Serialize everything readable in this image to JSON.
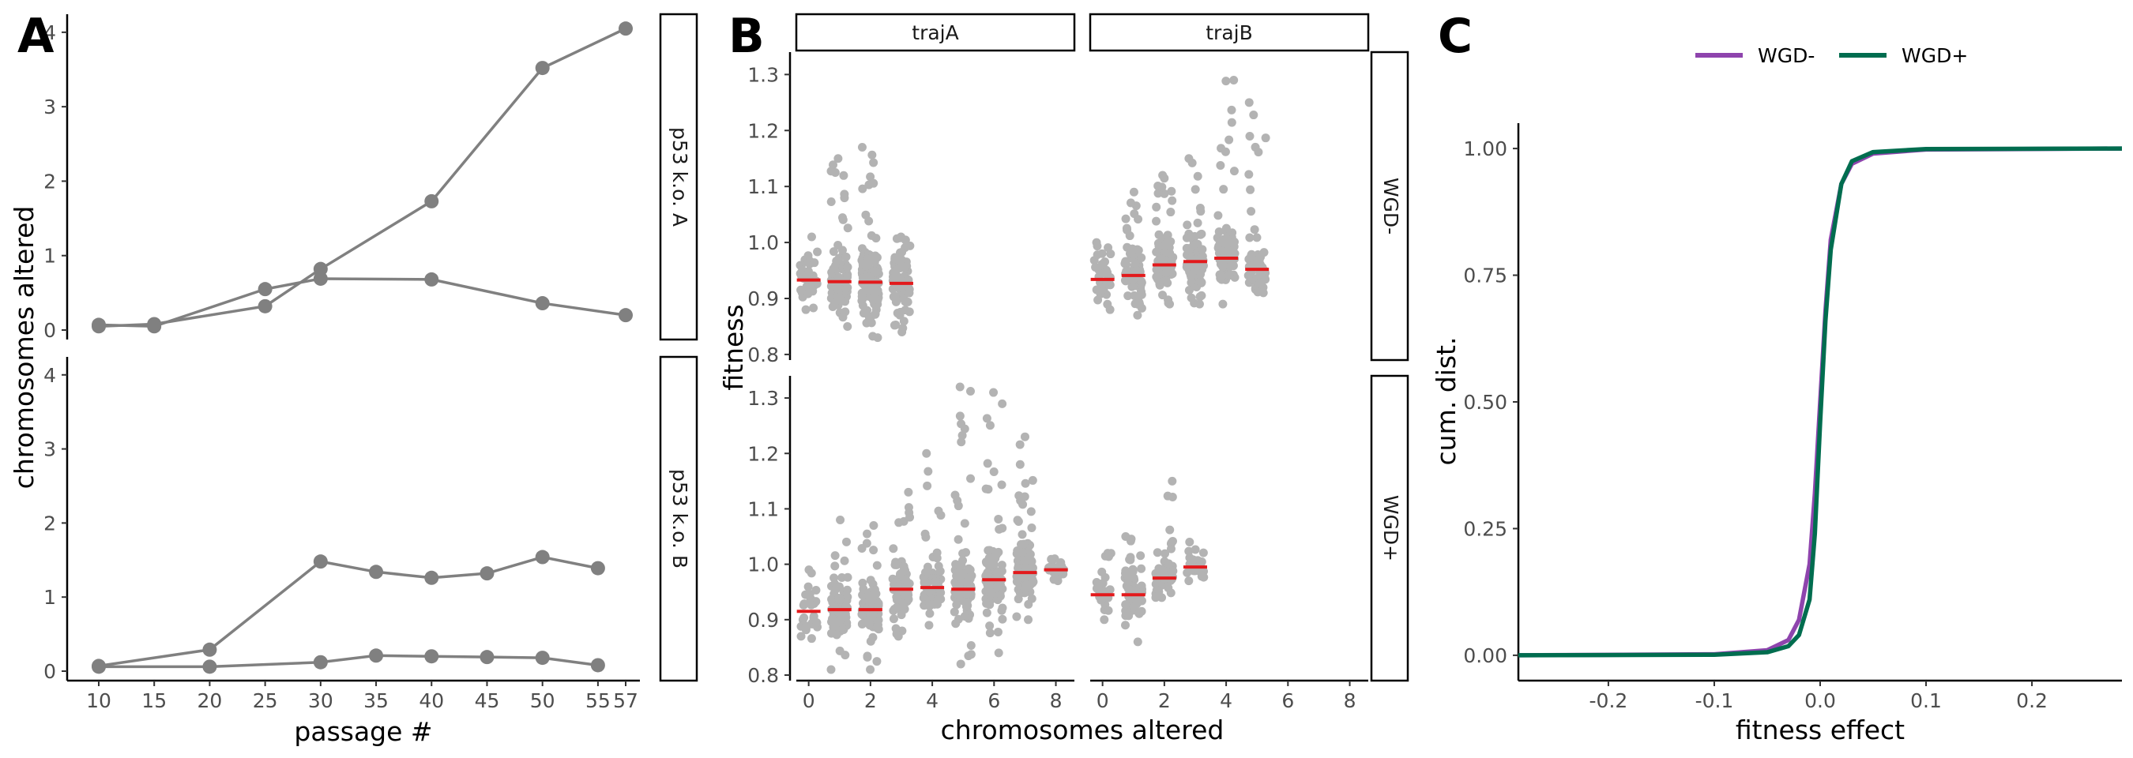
{
  "panel_labels": [
    "A",
    "B",
    "C"
  ],
  "colors": {
    "line_a": "#808080",
    "point_b": "#b3b3b3",
    "mean_bar": "#e31a1c",
    "wgd_minus": "#8e44ad",
    "wgd_plus": "#006d4f"
  },
  "chart_data": [
    {
      "panel": "A",
      "type": "line",
      "xlabel": "passage #",
      "ylabel": "chromosomes altered",
      "x_ticks": [
        "10",
        "15",
        "20",
        "25",
        "30",
        "35",
        "40",
        "45",
        "50",
        "55",
        "57"
      ],
      "x_tick_values": [
        10,
        15,
        20,
        25,
        30,
        35,
        40,
        45,
        50,
        55,
        57.5
      ],
      "ylim": [
        0,
        4.2
      ],
      "y_ticks": [
        "0",
        "1",
        "2",
        "3",
        "4"
      ],
      "facets": [
        {
          "label": "p53 k.o. A",
          "series": [
            {
              "x": [
                10,
                15,
                25,
                30,
                40,
                50,
                57.5
              ],
              "y": [
                0.05,
                0.08,
                0.32,
                0.82,
                1.73,
                3.52,
                4.05
              ]
            },
            {
              "x": [
                10,
                15,
                25,
                30,
                40,
                50,
                57.5
              ],
              "y": [
                0.07,
                0.05,
                0.55,
                0.69,
                0.68,
                0.36,
                0.2
              ]
            }
          ]
        },
        {
          "label": "p53 k.o. B",
          "series": [
            {
              "x": [
                10,
                20,
                30,
                35,
                40,
                45,
                50,
                55
              ],
              "y": [
                0.07,
                0.29,
                1.48,
                1.34,
                1.26,
                1.32,
                1.54,
                1.39
              ]
            },
            {
              "x": [
                10,
                20,
                30,
                35,
                40,
                45,
                50,
                55
              ],
              "y": [
                0.06,
                0.06,
                0.12,
                0.21,
                0.2,
                0.19,
                0.18,
                0.08
              ]
            }
          ]
        }
      ]
    },
    {
      "panel": "B",
      "type": "scatter",
      "xlabel": "chromosomes altered",
      "ylabel": "fitness",
      "xlim": [
        -0.4,
        8.6
      ],
      "x_ticks": [
        0,
        2,
        4,
        6,
        8
      ],
      "ylim": [
        0.79,
        1.34
      ],
      "y_ticks": [
        "0.8",
        "0.9",
        "1.0",
        "1.1",
        "1.2",
        "1.3"
      ],
      "y_tick_values": [
        0.8,
        0.9,
        1.0,
        1.1,
        1.2,
        1.3
      ],
      "col_strips": [
        "trajA",
        "trajB"
      ],
      "row_strips": [
        "WGD-",
        "WGD+"
      ],
      "facets": [
        {
          "col": 0,
          "row": 0,
          "groups": [
            {
              "x": 0,
              "mean": 0.933,
              "min": 0.88,
              "max": 1.01,
              "n": 40
            },
            {
              "x": 1,
              "mean": 0.93,
              "min": 0.85,
              "max": 1.15,
              "n": 90
            },
            {
              "x": 2,
              "mean": 0.929,
              "min": 0.83,
              "max": 1.17,
              "n": 110
            },
            {
              "x": 3,
              "mean": 0.927,
              "min": 0.84,
              "max": 1.01,
              "n": 80
            }
          ]
        },
        {
          "col": 1,
          "row": 0,
          "groups": [
            {
              "x": 0,
              "mean": 0.934,
              "min": 0.88,
              "max": 1.0,
              "n": 40
            },
            {
              "x": 1,
              "mean": 0.941,
              "min": 0.87,
              "max": 1.09,
              "n": 70
            },
            {
              "x": 2,
              "mean": 0.96,
              "min": 0.89,
              "max": 1.12,
              "n": 90
            },
            {
              "x": 3,
              "mean": 0.966,
              "min": 0.89,
              "max": 1.15,
              "n": 90
            },
            {
              "x": 4,
              "mean": 0.972,
              "min": 0.89,
              "max": 1.29,
              "n": 70
            },
            {
              "x": 5,
              "mean": 0.952,
              "min": 0.91,
              "max": 1.25,
              "n": 60
            }
          ]
        },
        {
          "col": 0,
          "row": 1,
          "groups": [
            {
              "x": 0,
              "mean": 0.915,
              "min": 0.87,
              "max": 0.99,
              "n": 30
            },
            {
              "x": 1,
              "mean": 0.918,
              "min": 0.81,
              "max": 1.08,
              "n": 80
            },
            {
              "x": 2,
              "mean": 0.918,
              "min": 0.81,
              "max": 1.07,
              "n": 90
            },
            {
              "x": 3,
              "mean": 0.955,
              "min": 0.87,
              "max": 1.13,
              "n": 80
            },
            {
              "x": 4,
              "mean": 0.958,
              "min": 0.89,
              "max": 1.2,
              "n": 60
            },
            {
              "x": 5,
              "mean": 0.955,
              "min": 0.82,
              "max": 1.32,
              "n": 110
            },
            {
              "x": 6,
              "mean": 0.972,
              "min": 0.84,
              "max": 1.31,
              "n": 110
            },
            {
              "x": 7,
              "mean": 0.985,
              "min": 0.9,
              "max": 1.23,
              "n": 90
            },
            {
              "x": 8,
              "mean": 0.99,
              "min": 0.97,
              "max": 1.01,
              "n": 25
            }
          ]
        },
        {
          "col": 1,
          "row": 1,
          "groups": [
            {
              "x": 0,
              "mean": 0.945,
              "min": 0.9,
              "max": 1.02,
              "n": 25
            },
            {
              "x": 1,
              "mean": 0.945,
              "min": 0.86,
              "max": 1.05,
              "n": 70
            },
            {
              "x": 2,
              "mean": 0.975,
              "min": 0.94,
              "max": 1.15,
              "n": 50
            },
            {
              "x": 3,
              "mean": 0.995,
              "min": 0.97,
              "max": 1.04,
              "n": 25
            }
          ]
        }
      ]
    },
    {
      "panel": "C",
      "type": "line",
      "xlabel": "fitness effect",
      "ylabel": "cum. dist.",
      "xlim": [
        -0.285,
        0.285
      ],
      "x_ticks": [
        "-0.2",
        "-0.1",
        "0.0",
        "0.1",
        "0.2"
      ],
      "x_tick_values": [
        -0.2,
        -0.1,
        0.0,
        0.1,
        0.2
      ],
      "ylim": [
        -0.05,
        1.05
      ],
      "y_ticks": [
        "0.00",
        "0.25",
        "0.50",
        "0.75",
        "1.00"
      ],
      "y_tick_values": [
        0,
        0.25,
        0.5,
        0.75,
        1.0
      ],
      "legend": {
        "position": "top",
        "entries": [
          "WGD-",
          "WGD+"
        ]
      },
      "series": [
        {
          "name": "WGD-",
          "x": [
            -0.285,
            -0.1,
            -0.05,
            -0.03,
            -0.02,
            -0.01,
            -0.005,
            0,
            0.005,
            0.01,
            0.02,
            0.03,
            0.05,
            0.1,
            0.285
          ],
          "y": [
            0,
            0.002,
            0.01,
            0.03,
            0.07,
            0.18,
            0.32,
            0.5,
            0.68,
            0.82,
            0.93,
            0.97,
            0.99,
            0.998,
            1.0
          ]
        },
        {
          "name": "WGD+",
          "x": [
            -0.285,
            -0.1,
            -0.05,
            -0.03,
            -0.02,
            -0.01,
            -0.005,
            0,
            0.005,
            0.01,
            0.02,
            0.03,
            0.05,
            0.1,
            0.285
          ],
          "y": [
            0,
            0.001,
            0.006,
            0.018,
            0.04,
            0.11,
            0.24,
            0.46,
            0.66,
            0.8,
            0.93,
            0.975,
            0.993,
            0.999,
            1.0
          ]
        }
      ]
    }
  ]
}
